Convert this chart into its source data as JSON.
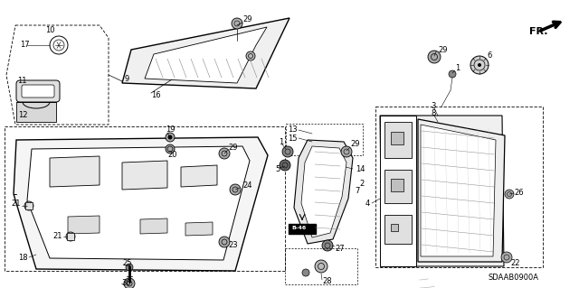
{
  "background_color": "#ffffff",
  "diagram_code": "SDAAB0900A",
  "gray": "#888888",
  "light_gray": "#cccccc",
  "dark_gray": "#555555"
}
